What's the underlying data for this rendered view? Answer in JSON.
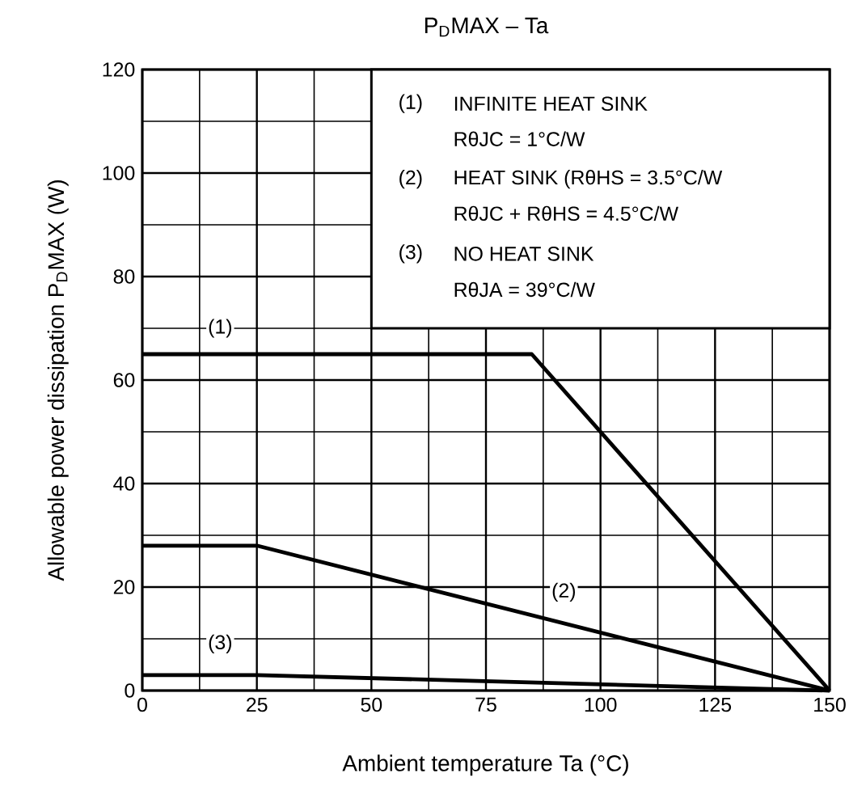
{
  "chart_data": {
    "type": "line",
    "title": "P$_{D}$MAX – Ta",
    "xlabel": "Ambient temperature   Ta   (°C)",
    "ylabel": "Allowable power dissipation   P$_{D}$MAX   (W)",
    "series": [
      {
        "name": "(1)",
        "color": "#000000",
        "x": [
          0,
          85,
          150
        ],
        "values": [
          65,
          65,
          0
        ]
      },
      {
        "name": "(2)",
        "color": "#000000",
        "x": [
          0,
          25,
          150
        ],
        "values": [
          28,
          28,
          0
        ]
      },
      {
        "name": "(3)",
        "color": "#000000",
        "x": [
          0,
          25,
          150
        ],
        "values": [
          3,
          3,
          0
        ]
      }
    ],
    "annotations": [
      "INFINITE HEAT SINK",
      "RθJC = 1°C/W",
      "HEAT SINK (RθHS = 3.5°C/W",
      "RθJC + RθHS = 4.5°C/W",
      "NO HEAT SINK",
      "RθJA = 39°C/W"
    ],
    "xlim": [
      0,
      150
    ],
    "ylim": [
      0,
      120
    ],
    "xticks": [
      0,
      25,
      50,
      75,
      100,
      125,
      150
    ],
    "yticks": [
      0,
      20,
      40,
      60,
      80,
      100,
      120
    ],
    "grid": true,
    "line_style": "solid",
    "marker": "none"
  }
}
